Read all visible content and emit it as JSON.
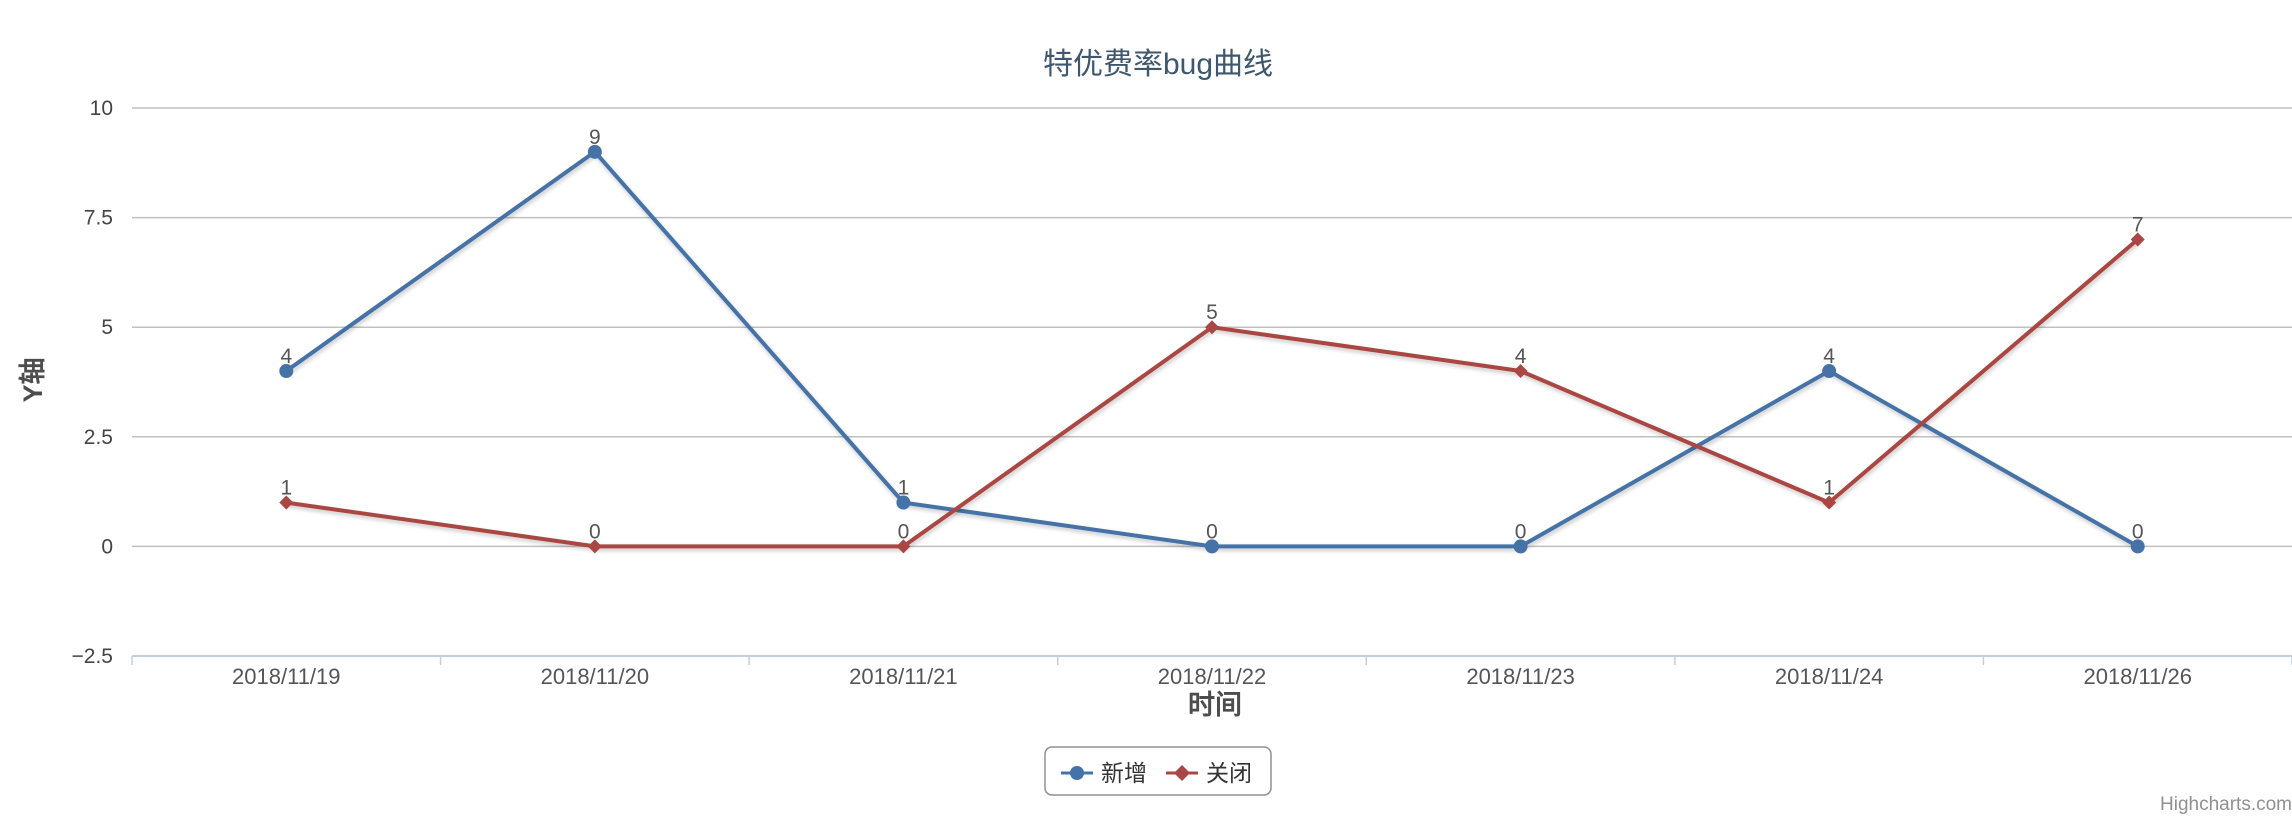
{
  "chart_data": {
    "type": "line",
    "title": "特优费率bug曲线",
    "xlabel": "时间",
    "ylabel": "Y轴",
    "categories": [
      "2018/11/19",
      "2018/11/20",
      "2018/11/21",
      "2018/11/22",
      "2018/11/23",
      "2018/11/24",
      "2018/11/26"
    ],
    "ylim": [
      -2.5,
      10
    ],
    "yticks": [
      "10",
      "7.5",
      "5",
      "2.5",
      "0",
      "−2.5"
    ],
    "grid": true,
    "legend_position": "bottom-center",
    "series": [
      {
        "name": "新增",
        "values": [
          4,
          9,
          1,
          0,
          0,
          4,
          0
        ],
        "color": "#4572A7",
        "marker": "circle"
      },
      {
        "name": "关闭",
        "values": [
          1,
          0,
          0,
          5,
          4,
          1,
          7
        ],
        "color": "#AA4643",
        "marker": "diamond"
      }
    ]
  },
  "credits": "Highcharts.com"
}
